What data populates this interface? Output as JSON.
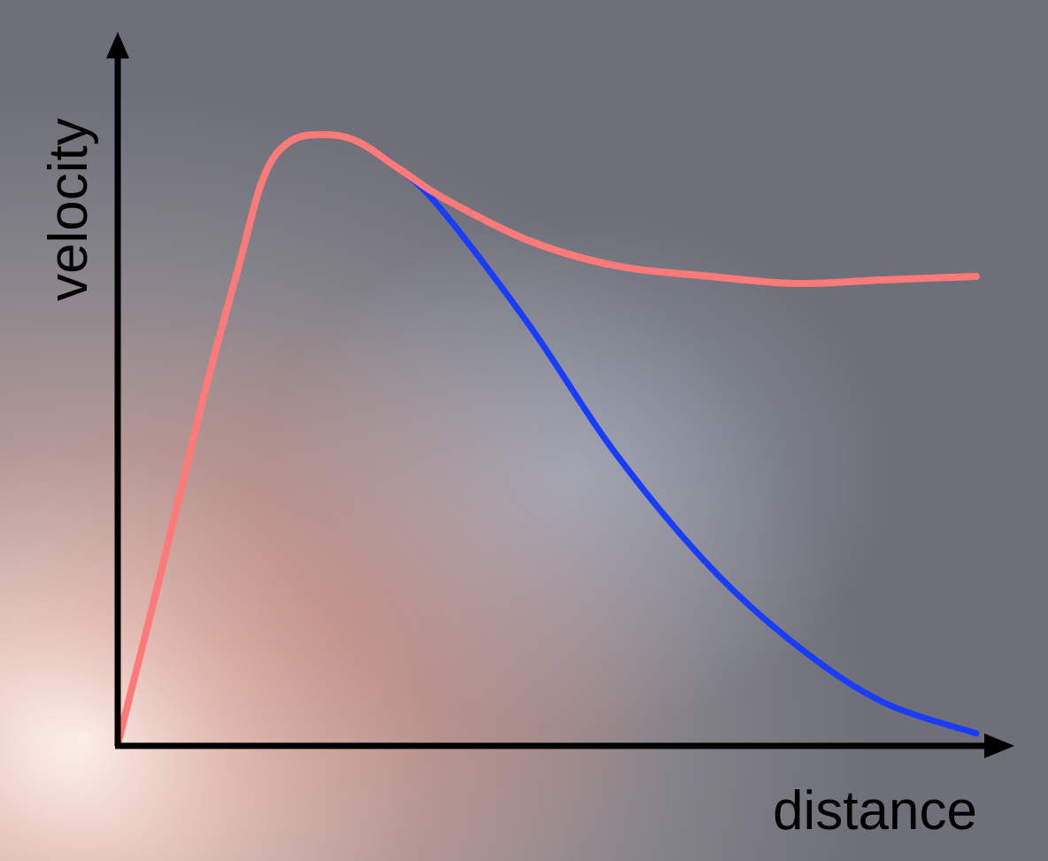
{
  "chart_data": {
    "type": "line",
    "x_label": "distance",
    "y_label": "velocity",
    "x": [
      0,
      5,
      10,
      14,
      17,
      20,
      24,
      28,
      33,
      38,
      48,
      58,
      69,
      79,
      89,
      100
    ],
    "series": [
      {
        "color": "#1a3cff",
        "values": [
          0,
          24,
          49,
          67,
          80,
          85,
          86,
          85,
          81,
          75,
          59,
          41,
          25,
          14,
          6,
          1.5
        ]
      },
      {
        "color": "#ff7a78",
        "values": [
          0,
          24,
          49,
          67,
          80,
          85,
          86,
          85,
          81,
          77,
          71,
          67.5,
          66,
          65,
          65.5,
          66
        ]
      }
    ],
    "xlim": [
      0,
      100
    ],
    "ylim": [
      0,
      100
    ]
  }
}
